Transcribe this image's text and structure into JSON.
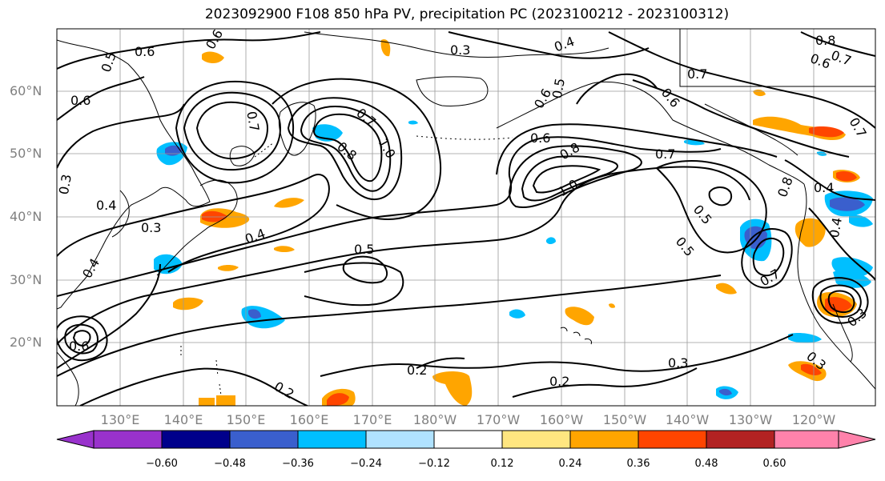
{
  "title": "2023092900 F108 850 hPa PV, precipitation PC (2023100212 - 2023100312)",
  "lat_labels": [
    "60°N",
    "50°N",
    "40°N",
    "30°N",
    "20°N"
  ],
  "lon_labels": [
    "130°E",
    "140°E",
    "150°E",
    "160°E",
    "170°E",
    "180°W",
    "170°W",
    "160°W",
    "150°W",
    "140°W",
    "130°W",
    "120°W"
  ],
  "colorbar": {
    "ticks": [
      "−0.60",
      "−0.48",
      "−0.36",
      "−0.24",
      "−0.12",
      "0.12",
      "0.24",
      "0.36",
      "0.48",
      "0.60"
    ],
    "colors": [
      "#9932cc",
      "#00008b",
      "#3a5fcd",
      "#00bfff",
      "#b0e2ff",
      "#ffffff",
      "#ffe680",
      "#ffa500",
      "#ff4500",
      "#b22222",
      "#ff82ab"
    ]
  },
  "contour_labels": [
    "0.6",
    "0.5",
    "0.6",
    "0.3",
    "0.4",
    "0.3",
    "0.4",
    "0.6",
    "0.7",
    "0.7",
    "0.8",
    "1.0",
    "0.5",
    "0.6",
    "0.4",
    "0.4",
    "0.3",
    "0.5",
    "0.6",
    "0.8",
    "1.0",
    "0.7",
    "0.6",
    "0.7",
    "0.5",
    "0.5",
    "0.7",
    "0.8",
    "0.4",
    "0.3",
    "0.2",
    "0.2",
    "0.2",
    "0.3",
    "0.3",
    "0.6",
    "0.8",
    "0.7",
    "0.6",
    "0.4",
    "0.7"
  ]
}
